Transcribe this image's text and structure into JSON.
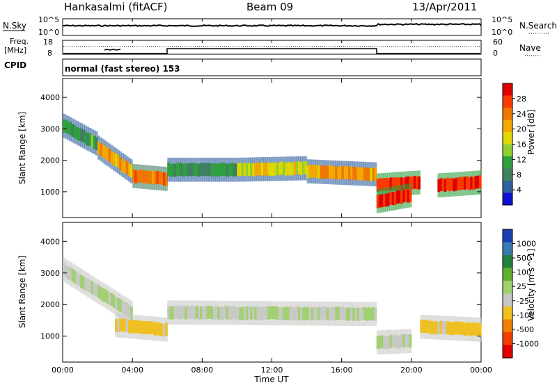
{
  "header": {
    "radar": "Hankasalmi (fitACF)",
    "beam": "Beam 09",
    "date": "13/Apr/2011"
  },
  "nsky_panel": {
    "left_label": "N.Sky",
    "left_ticks": [
      "10^5",
      "10^0"
    ],
    "right_ticks": [
      "10^5",
      "10^0"
    ],
    "right_label": "N.Search"
  },
  "freq_panel": {
    "left_label_1": "Freq.",
    "left_label_2": "[MHz]",
    "left_ticks": [
      "18",
      "8"
    ],
    "right_ticks": [
      "60",
      "0"
    ],
    "right_label": "Nave"
  },
  "cpid": {
    "label": "CPID",
    "mode": "normal (fast stereo) 153"
  },
  "x_axis": {
    "ticks": [
      "00:00",
      "04:00",
      "08:00",
      "12:00",
      "16:00",
      "20:00",
      "00:00"
    ],
    "label": "Time UT"
  },
  "power_panel": {
    "ylabel": "Slant Range [km]",
    "yticks": [
      "4000",
      "3000",
      "2000",
      "1000"
    ],
    "colorbar_label": "Power [dB]",
    "colorbar_ticks": [
      "28",
      "24",
      "20",
      "16",
      "12",
      "8",
      "4"
    ],
    "colors": [
      "#e00000",
      "#ff3a00",
      "#f07800",
      "#f5a800",
      "#e0d800",
      "#8fd030",
      "#30a040",
      "#408060",
      "#3060a0",
      "#1010d0"
    ]
  },
  "velocity_panel": {
    "ylabel": "Slant Range [km]",
    "yticks": [
      "4000",
      "3000",
      "2000",
      "1000"
    ],
    "colorbar_label": "Velocity [m s^-1]",
    "colorbar_ticks": [
      "1000",
      "500",
      "100",
      "25",
      "-25",
      "-100",
      "-500",
      "-1000"
    ],
    "colors": [
      "#1a40b0",
      "#3a7ab0",
      "#208040",
      "#60b030",
      "#a0d070",
      "#c8c8c4",
      "#f0c020",
      "#f08000",
      "#f04000",
      "#e00000"
    ]
  },
  "chart_data": [
    {
      "type": "heatmap",
      "title": "Power",
      "x_range": [
        "00:00",
        "24:00"
      ],
      "ylim": [
        180,
        4600
      ],
      "ylabel": "Slant Range [km]",
      "zlabel": "Power [dB]",
      "zlim": [
        0,
        32
      ],
      "bands": [
        {
          "t_start": 0.0,
          "t_end": 2.0,
          "range_start": 3100,
          "range_end": 2500,
          "power": 10
        },
        {
          "t_start": 2.0,
          "t_end": 4.0,
          "range_start": 2400,
          "range_end": 1600,
          "power": 22
        },
        {
          "t_start": 4.0,
          "t_end": 6.0,
          "range_start": 1500,
          "range_end": 1400,
          "power": 26
        },
        {
          "t_start": 6.0,
          "t_end": 10.0,
          "range_start": 1700,
          "range_end": 1700,
          "power": 10
        },
        {
          "t_start": 10.0,
          "t_end": 14.0,
          "range_start": 1700,
          "range_end": 1750,
          "power": 18
        },
        {
          "t_start": 14.0,
          "t_end": 18.0,
          "range_start": 1650,
          "range_end": 1550,
          "power": 22
        },
        {
          "t_start": 18.0,
          "t_end": 20.5,
          "range_start": 1200,
          "range_end": 1300,
          "power": 30
        },
        {
          "t_start": 18.0,
          "t_end": 20.0,
          "range_start": 700,
          "range_end": 900,
          "power": 30
        },
        {
          "t_start": 21.5,
          "t_end": 24.0,
          "range_start": 1200,
          "range_end": 1300,
          "power": 30
        }
      ]
    },
    {
      "type": "heatmap",
      "title": "Velocity",
      "x_range": [
        "00:00",
        "24:00"
      ],
      "ylim": [
        180,
        4600
      ],
      "ylabel": "Slant Range [km]",
      "zlabel": "Velocity [m s^-1]",
      "zlim": [
        -1000,
        1000
      ],
      "bands": [
        {
          "t_start": 0.0,
          "t_end": 4.0,
          "range_start": 3100,
          "range_end": 1700,
          "velocity": 0
        },
        {
          "t_start": 3.0,
          "t_end": 6.0,
          "range_start": 1350,
          "range_end": 1200,
          "velocity": -300
        },
        {
          "t_start": 6.0,
          "t_end": 18.0,
          "range_start": 1750,
          "range_end": 1700,
          "velocity": 0
        },
        {
          "t_start": 18.0,
          "t_end": 20.0,
          "range_start": 800,
          "range_end": 850,
          "velocity": 0
        },
        {
          "t_start": 20.5,
          "t_end": 24.0,
          "range_start": 1300,
          "range_end": 1200,
          "velocity": -300
        }
      ]
    }
  ]
}
